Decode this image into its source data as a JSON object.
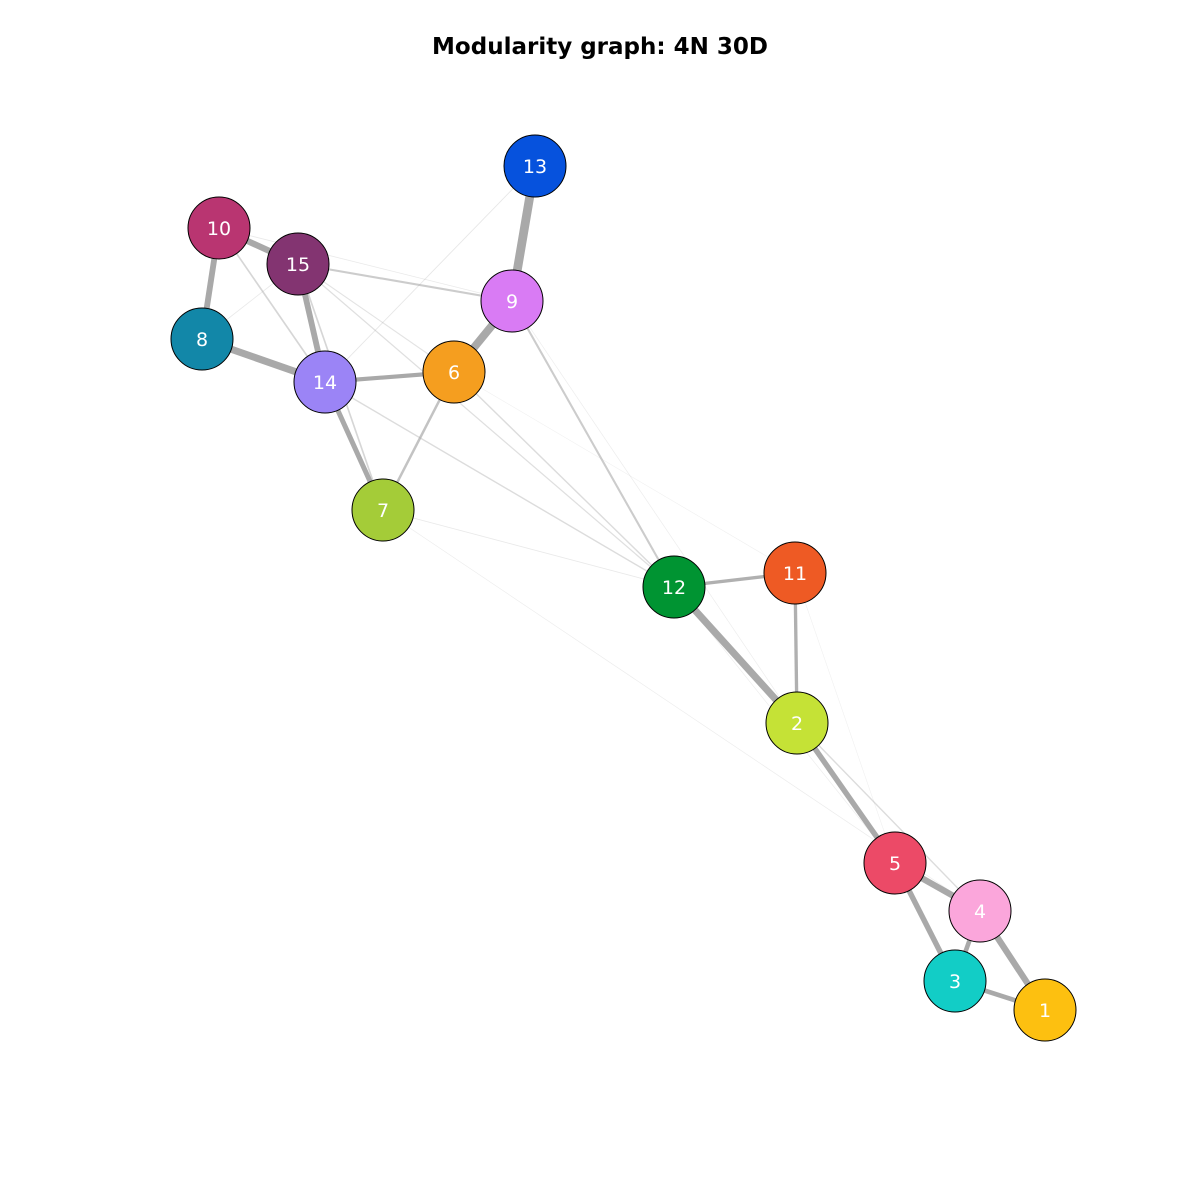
{
  "title": "Modularity graph: 4N 30D",
  "graph": {
    "nodes": [
      {
        "id": "1",
        "label": "1",
        "color": "#FDC010"
      },
      {
        "id": "2",
        "label": "2",
        "color": "#C5E236"
      },
      {
        "id": "3",
        "label": "3",
        "color": "#12CDC6"
      },
      {
        "id": "4",
        "label": "4",
        "color": "#FBA6DB"
      },
      {
        "id": "5",
        "label": "5",
        "color": "#EC4A67"
      },
      {
        "id": "6",
        "label": "6",
        "color": "#F59E1F"
      },
      {
        "id": "7",
        "label": "7",
        "color": "#A4CC38"
      },
      {
        "id": "8",
        "label": "8",
        "color": "#1287A8"
      },
      {
        "id": "9",
        "label": "9",
        "color": "#D97BF4"
      },
      {
        "id": "10",
        "label": "10",
        "color": "#B93571"
      },
      {
        "id": "11",
        "label": "11",
        "color": "#EE5A24"
      },
      {
        "id": "12",
        "label": "12",
        "color": "#009432"
      },
      {
        "id": "13",
        "label": "13",
        "color": "#0652DD"
      },
      {
        "id": "14",
        "label": "14",
        "color": "#9B84F6"
      },
      {
        "id": "15",
        "label": "15",
        "color": "#833471"
      }
    ],
    "edges": [
      {
        "source": "9",
        "target": "13",
        "weight": 1.0
      },
      {
        "source": "6",
        "target": "9",
        "weight": 0.9
      },
      {
        "source": "8",
        "target": "14",
        "weight": 0.8
      },
      {
        "source": "12",
        "target": "2",
        "weight": 0.8
      },
      {
        "source": "10",
        "target": "15",
        "weight": 0.7
      },
      {
        "source": "4",
        "target": "1",
        "weight": 0.7
      },
      {
        "source": "5",
        "target": "4",
        "weight": 0.7
      },
      {
        "source": "10",
        "target": "8",
        "weight": 0.65
      },
      {
        "source": "15",
        "target": "14",
        "weight": 0.65
      },
      {
        "source": "2",
        "target": "5",
        "weight": 0.6
      },
      {
        "source": "5",
        "target": "3",
        "weight": 0.6
      },
      {
        "source": "14",
        "target": "7",
        "weight": 0.55
      },
      {
        "source": "3",
        "target": "1",
        "weight": 0.5
      },
      {
        "source": "4",
        "target": "3",
        "weight": 0.5
      },
      {
        "source": "14",
        "target": "6",
        "weight": 0.45
      },
      {
        "source": "12",
        "target": "11",
        "weight": 0.35
      },
      {
        "source": "11",
        "target": "2",
        "weight": 0.35
      },
      {
        "source": "6",
        "target": "7",
        "weight": 0.25
      },
      {
        "source": "9",
        "target": "12",
        "weight": 0.2
      },
      {
        "source": "15",
        "target": "9",
        "weight": 0.2
      },
      {
        "source": "10",
        "target": "14",
        "weight": 0.15
      },
      {
        "source": "15",
        "target": "7",
        "weight": 0.15
      },
      {
        "source": "14",
        "target": "12",
        "weight": 0.12
      },
      {
        "source": "6",
        "target": "12",
        "weight": 0.12
      },
      {
        "source": "2",
        "target": "4",
        "weight": 0.12
      },
      {
        "source": "15",
        "target": "12",
        "weight": 0.1
      },
      {
        "source": "15",
        "target": "6",
        "weight": 0.08
      },
      {
        "source": "13",
        "target": "14",
        "weight": 0.06
      },
      {
        "source": "10",
        "target": "9",
        "weight": 0.05
      },
      {
        "source": "7",
        "target": "12",
        "weight": 0.05
      },
      {
        "source": "8",
        "target": "15",
        "weight": 0.05
      },
      {
        "source": "7",
        "target": "4",
        "weight": 0.03
      },
      {
        "source": "9",
        "target": "2",
        "weight": 0.03
      },
      {
        "source": "12",
        "target": "5",
        "weight": 0.03
      },
      {
        "source": "11",
        "target": "5",
        "weight": 0.02
      },
      {
        "source": "6",
        "target": "11",
        "weight": 0.02
      }
    ]
  }
}
